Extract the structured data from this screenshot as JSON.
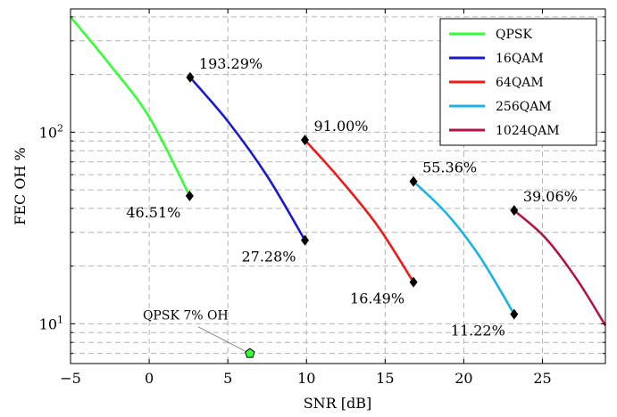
{
  "chart_data": {
    "type": "line",
    "title": "",
    "xlabel": "SNR [dB]",
    "ylabel": "FEC OH %",
    "xlim": [
      -5,
      29
    ],
    "ylim": [
      6.2,
      440
    ],
    "yscale": "log",
    "grid": true,
    "legend_position": "top-right",
    "x_ticks": [
      -5,
      0,
      5,
      10,
      15,
      20,
      25
    ],
    "y_tick_labels": [
      "10^1",
      "10^2"
    ],
    "series": [
      {
        "name": "QPSK",
        "color": "#33ff33",
        "points": [
          [
            -5,
            400
          ],
          [
            -2.5,
            225
          ],
          [
            0,
            120
          ],
          [
            2.57,
            46.51
          ]
        ]
      },
      {
        "name": "16QAM",
        "color": "#1a1acc",
        "points": [
          [
            2.6,
            193.29
          ],
          [
            5,
            114
          ],
          [
            7.5,
            59
          ],
          [
            9.9,
            27.28
          ]
        ]
      },
      {
        "name": "64QAM",
        "color": "#ee1a1a",
        "points": [
          [
            9.9,
            91.0
          ],
          [
            12,
            58.5
          ],
          [
            14.5,
            32.6
          ],
          [
            16.8,
            16.49
          ]
        ]
      },
      {
        "name": "256QAM",
        "color": "#1ab3e6",
        "points": [
          [
            16.8,
            55.36
          ],
          [
            18.9,
            37.7
          ],
          [
            21,
            22.5
          ],
          [
            23.2,
            11.22
          ]
        ]
      },
      {
        "name": "1024QAM",
        "color": "#b3124d",
        "points": [
          [
            23.2,
            39.06
          ],
          [
            25.2,
            28.0
          ],
          [
            27.2,
            17.0
          ],
          [
            29,
            9.8
          ]
        ]
      }
    ],
    "markers": [
      {
        "x": 2.57,
        "y": 46.51,
        "label": "46.51%",
        "anchor": "below-left"
      },
      {
        "x": 2.6,
        "y": 193.29,
        "label": "193.29%",
        "anchor": "above-right"
      },
      {
        "x": 9.9,
        "y": 27.28,
        "label": "27.28%",
        "anchor": "below-left"
      },
      {
        "x": 9.9,
        "y": 91.0,
        "label": "91.00%",
        "anchor": "above-right"
      },
      {
        "x": 16.8,
        "y": 16.49,
        "label": "16.49%",
        "anchor": "below-left"
      },
      {
        "x": 16.8,
        "y": 55.36,
        "label": "55.36%",
        "anchor": "above-right"
      },
      {
        "x": 23.2,
        "y": 11.22,
        "label": "11.22%",
        "anchor": "below-left"
      },
      {
        "x": 23.2,
        "y": 39.06,
        "label": "39.06%",
        "anchor": "above-right"
      }
    ],
    "annotations": [
      {
        "text": "QPSK 7% OH",
        "x": 6.4,
        "y": 7.0,
        "marker": "pentagon",
        "color": "#33ff33"
      }
    ]
  }
}
